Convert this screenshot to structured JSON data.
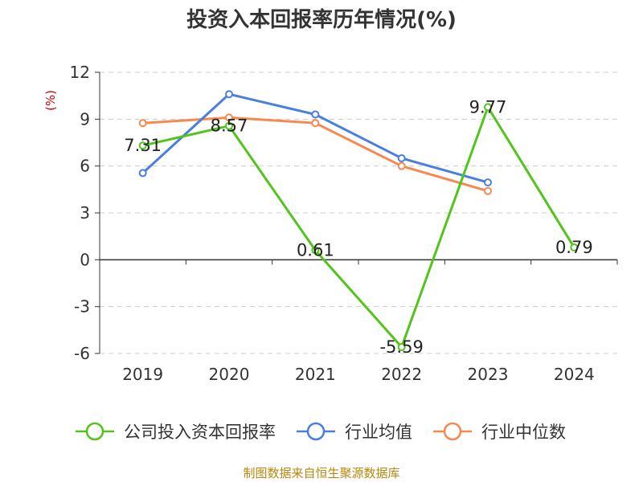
{
  "chart_data": {
    "type": "line",
    "title": "投资入本回报率历年情况(%)",
    "unit_label": "(%)",
    "categories": [
      "2019",
      "2020",
      "2021",
      "2022",
      "2023",
      "2024"
    ],
    "ylim": [
      -6,
      12
    ],
    "yticks": [
      12,
      9,
      6,
      3,
      0,
      -3,
      -6
    ],
    "grid": true,
    "legend_position": "bottom",
    "series": [
      {
        "name": "公司投入资本回报率",
        "color": "#52c41a",
        "values": [
          7.31,
          8.57,
          0.61,
          -5.59,
          9.77,
          0.79
        ],
        "labels": [
          "7.31",
          "8.57",
          "0.61",
          "-5.59",
          "9.77",
          "0.79"
        ]
      },
      {
        "name": "行业均值",
        "color": "#4a7fe0",
        "values": [
          5.55,
          10.6,
          9.3,
          6.5,
          4.95,
          null
        ]
      },
      {
        "name": "行业中位数",
        "color": "#f5894f",
        "values": [
          8.75,
          9.1,
          8.75,
          6.0,
          4.4,
          null
        ]
      }
    ],
    "source": "制图数据来自恒生聚源数据库"
  }
}
